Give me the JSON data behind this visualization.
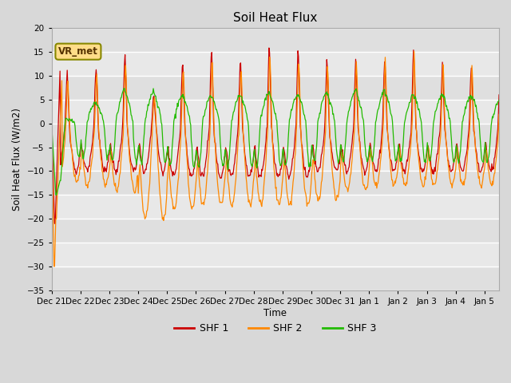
{
  "title": "Soil Heat Flux",
  "ylabel": "Soil Heat Flux (W/m2)",
  "xlabel": "Time",
  "ylim": [
    -35,
    20
  ],
  "yticks": [
    -35,
    -30,
    -25,
    -20,
    -15,
    -10,
    -5,
    0,
    5,
    10,
    15,
    20
  ],
  "bg_color": "#d8d8d8",
  "plot_bg_color": "#e8e8e8",
  "legend_labels": [
    "SHF 1",
    "SHF 2",
    "SHF 3"
  ],
  "legend_colors": [
    "#cc0000",
    "#ff8800",
    "#22bb00"
  ],
  "annotation_text": "VR_met",
  "annotation_bg": "#ffdd88",
  "annotation_border": "#888800",
  "line_colors": [
    "#cc0000",
    "#ff8800",
    "#22bb00"
  ],
  "x_tick_labels": [
    "Dec 21",
    "Dec 22",
    "Dec 23",
    "Dec 24",
    "Dec 25",
    "Dec 26",
    "Dec 27",
    "Dec 28",
    "Dec 29",
    "Dec 30",
    "Dec 31",
    "Jan 1",
    "Jan 2",
    "Jan 3",
    "Jan 4",
    "Jan 5"
  ]
}
